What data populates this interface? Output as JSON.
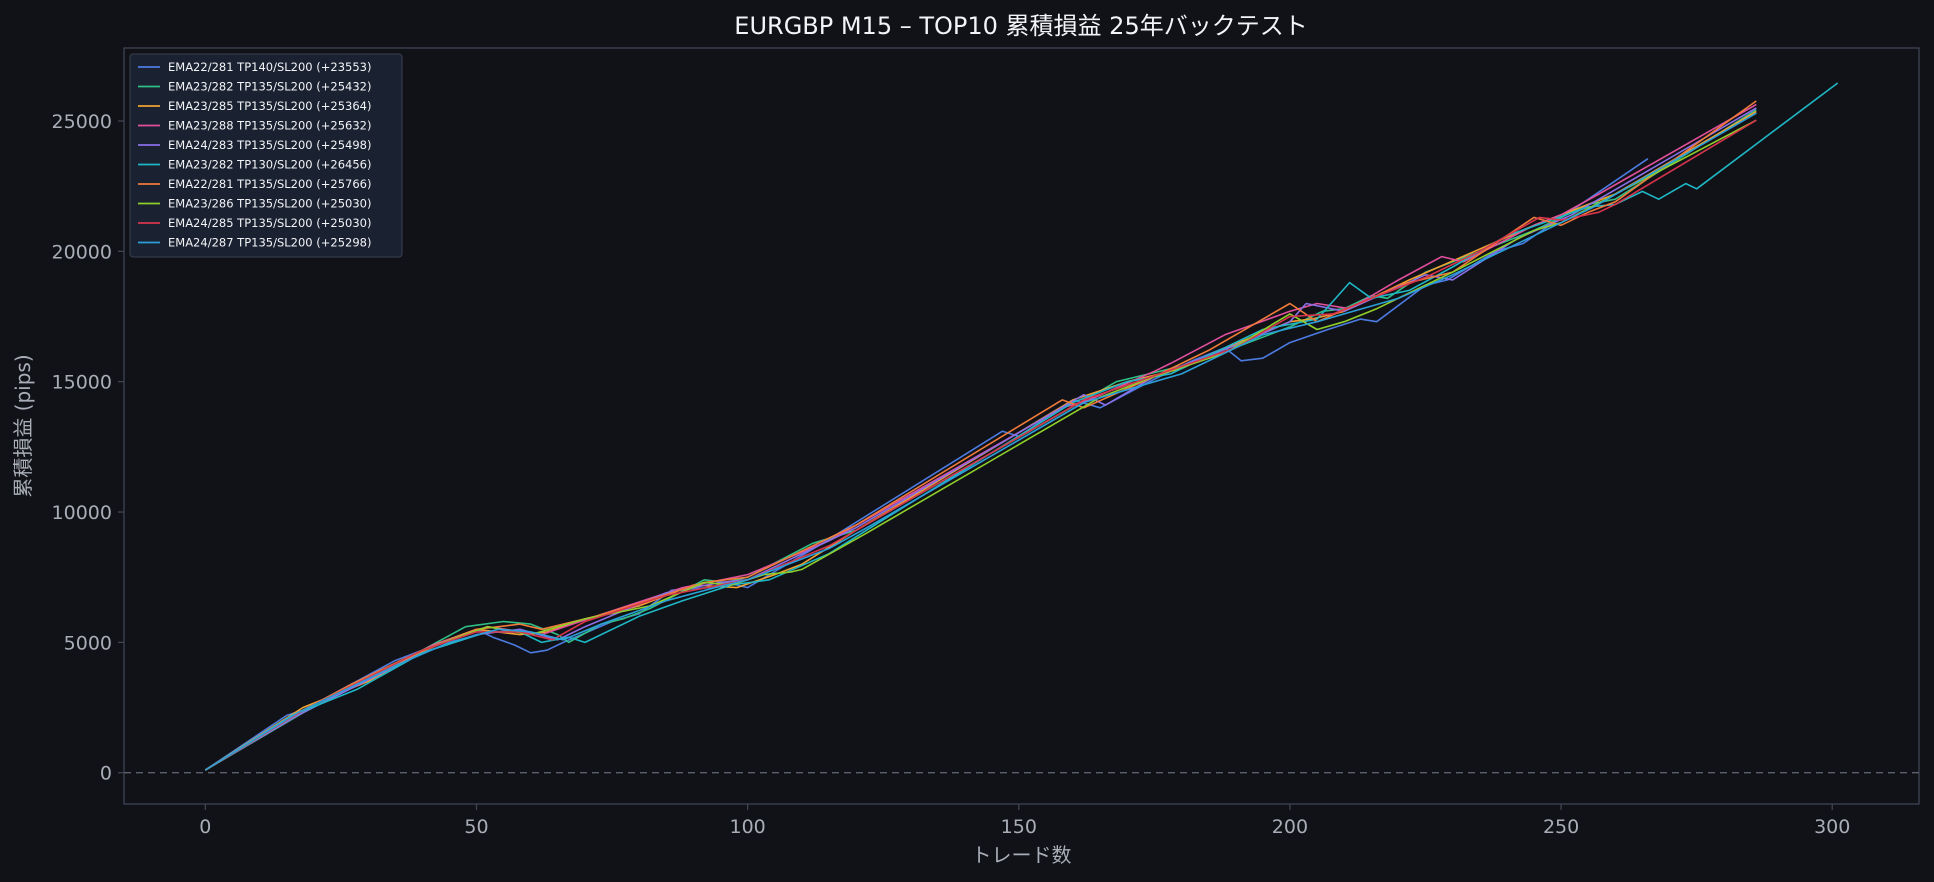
{
  "chart_data": {
    "type": "line",
    "title": "EURGBP M15 – TOP10 累積損益 25年バックテスト",
    "xlabel": "トレード数",
    "ylabel": "累積損益 (pips)",
    "xlim": [
      -15,
      316
    ],
    "ylim": [
      -1200,
      27800
    ],
    "xticks": [
      0,
      50,
      100,
      150,
      200,
      250,
      300
    ],
    "yticks": [
      0,
      5000,
      10000,
      15000,
      20000,
      25000
    ],
    "grid": false,
    "legend_position": "top-left",
    "reference_line": {
      "y": 0,
      "style": "dashed"
    },
    "colors": {
      "background": "#111217",
      "plot_background": "#111217",
      "axis": "#3f4453",
      "text": "#a8adb7"
    },
    "series": [
      {
        "name": "EMA22/281 TP140/SL200 (+23553)",
        "color": "#4c7be0",
        "points": [
          [
            0,
            100
          ],
          [
            15,
            2200
          ],
          [
            18,
            2400
          ],
          [
            35,
            4300
          ],
          [
            45,
            5100
          ],
          [
            50,
            5500
          ],
          [
            53,
            5200
          ],
          [
            57,
            4900
          ],
          [
            60,
            4600
          ],
          [
            63,
            4700
          ],
          [
            66,
            5000
          ],
          [
            75,
            5800
          ],
          [
            80,
            6100
          ],
          [
            86,
            7000
          ],
          [
            93,
            7100
          ],
          [
            96,
            7300
          ],
          [
            100,
            7100
          ],
          [
            113,
            8700
          ],
          [
            147,
            13100
          ],
          [
            150,
            12900
          ],
          [
            160,
            14300
          ],
          [
            165,
            14000
          ],
          [
            175,
            15100
          ],
          [
            182,
            15800
          ],
          [
            188,
            16300
          ],
          [
            191,
            15800
          ],
          [
            195,
            15900
          ],
          [
            200,
            16500
          ],
          [
            207,
            17000
          ],
          [
            213,
            17400
          ],
          [
            216,
            17300
          ],
          [
            225,
            18700
          ],
          [
            229,
            18900
          ],
          [
            238,
            20000
          ],
          [
            243,
            20300
          ],
          [
            266,
            23553
          ]
        ]
      },
      {
        "name": "EMA23/282 TP135/SL200 (+25432)",
        "color": "#2fbf86",
        "points": [
          [
            0,
            100
          ],
          [
            18,
            2300
          ],
          [
            40,
            4700
          ],
          [
            48,
            5600
          ],
          [
            55,
            5800
          ],
          [
            60,
            5700
          ],
          [
            65,
            5300
          ],
          [
            67,
            5000
          ],
          [
            73,
            5700
          ],
          [
            77,
            5900
          ],
          [
            82,
            6300
          ],
          [
            92,
            7400
          ],
          [
            96,
            7300
          ],
          [
            100,
            7500
          ],
          [
            112,
            8800
          ],
          [
            120,
            9300
          ],
          [
            168,
            15000
          ],
          [
            180,
            15600
          ],
          [
            186,
            16000
          ],
          [
            200,
            17100
          ],
          [
            206,
            17700
          ],
          [
            210,
            17800
          ],
          [
            215,
            18300
          ],
          [
            218,
            18200
          ],
          [
            225,
            19200
          ],
          [
            245,
            20800
          ],
          [
            255,
            21800
          ],
          [
            260,
            22000
          ],
          [
            286,
            25432
          ]
        ]
      },
      {
        "name": "EMA23/285 TP135/SL200 (+25364)",
        "color": "#f0a030",
        "points": [
          [
            0,
            100
          ],
          [
            18,
            2500
          ],
          [
            30,
            3500
          ],
          [
            42,
            4900
          ],
          [
            50,
            5500
          ],
          [
            58,
            5300
          ],
          [
            63,
            5400
          ],
          [
            70,
            5900
          ],
          [
            80,
            6400
          ],
          [
            90,
            7200
          ],
          [
            98,
            7100
          ],
          [
            105,
            7600
          ],
          [
            110,
            8000
          ],
          [
            120,
            9300
          ],
          [
            160,
            14300
          ],
          [
            170,
            15000
          ],
          [
            180,
            15500
          ],
          [
            187,
            16200
          ],
          [
            200,
            17300
          ],
          [
            204,
            17400
          ],
          [
            210,
            17700
          ],
          [
            222,
            18900
          ],
          [
            245,
            21000
          ],
          [
            260,
            22200
          ],
          [
            286,
            25364
          ]
        ]
      },
      {
        "name": "EMA23/288 TP135/SL200 (+25632)",
        "color": "#e0509c",
        "points": [
          [
            0,
            100
          ],
          [
            18,
            2400
          ],
          [
            42,
            4900
          ],
          [
            52,
            5600
          ],
          [
            62,
            5300
          ],
          [
            72,
            6000
          ],
          [
            88,
            7100
          ],
          [
            100,
            7600
          ],
          [
            115,
            8900
          ],
          [
            158,
            14000
          ],
          [
            163,
            14300
          ],
          [
            175,
            15400
          ],
          [
            178,
            15700
          ],
          [
            188,
            16800
          ],
          [
            200,
            17700
          ],
          [
            205,
            18000
          ],
          [
            211,
            17800
          ],
          [
            220,
            18900
          ],
          [
            228,
            19800
          ],
          [
            232,
            19600
          ],
          [
            245,
            21000
          ],
          [
            250,
            21400
          ],
          [
            257,
            22200
          ],
          [
            286,
            25632
          ]
        ]
      },
      {
        "name": "EMA24/283 TP135/SL200 (+25498)",
        "color": "#8a6fe8",
        "points": [
          [
            0,
            100
          ],
          [
            17,
            2200
          ],
          [
            40,
            4600
          ],
          [
            50,
            5300
          ],
          [
            58,
            5500
          ],
          [
            65,
            5100
          ],
          [
            70,
            5600
          ],
          [
            85,
            6900
          ],
          [
            95,
            7300
          ],
          [
            100,
            7400
          ],
          [
            120,
            9400
          ],
          [
            162,
            14500
          ],
          [
            166,
            14100
          ],
          [
            175,
            15200
          ],
          [
            190,
            16400
          ],
          [
            200,
            17300
          ],
          [
            203,
            18000
          ],
          [
            210,
            17700
          ],
          [
            225,
            19100
          ],
          [
            230,
            18900
          ],
          [
            242,
            20500
          ],
          [
            252,
            21400
          ],
          [
            286,
            25498
          ]
        ]
      },
      {
        "name": "EMA23/282 TP130/SL200 (+26456)",
        "color": "#1fb7c6",
        "points": [
          [
            0,
            100
          ],
          [
            16,
            2200
          ],
          [
            28,
            3200
          ],
          [
            40,
            4600
          ],
          [
            52,
            5400
          ],
          [
            58,
            5400
          ],
          [
            62,
            5000
          ],
          [
            67,
            5200
          ],
          [
            70,
            5000
          ],
          [
            80,
            6000
          ],
          [
            88,
            6600
          ],
          [
            97,
            7200
          ],
          [
            104,
            7400
          ],
          [
            115,
            8400
          ],
          [
            125,
            9700
          ],
          [
            160,
            14200
          ],
          [
            170,
            15000
          ],
          [
            178,
            15300
          ],
          [
            195,
            17000
          ],
          [
            205,
            17400
          ],
          [
            211,
            18800
          ],
          [
            215,
            18200
          ],
          [
            222,
            18500
          ],
          [
            230,
            19400
          ],
          [
            240,
            20600
          ],
          [
            255,
            21700
          ],
          [
            260,
            21800
          ],
          [
            265,
            22300
          ],
          [
            268,
            22000
          ],
          [
            273,
            22600
          ],
          [
            275,
            22400
          ],
          [
            301,
            26456
          ]
        ]
      },
      {
        "name": "EMA22/281 TP135/SL200 (+25766)",
        "color": "#f07a3a",
        "points": [
          [
            0,
            100
          ],
          [
            18,
            2400
          ],
          [
            27,
            3400
          ],
          [
            37,
            4400
          ],
          [
            50,
            5500
          ],
          [
            58,
            5700
          ],
          [
            62,
            5500
          ],
          [
            72,
            6000
          ],
          [
            80,
            6500
          ],
          [
            92,
            7300
          ],
          [
            100,
            7500
          ],
          [
            112,
            8700
          ],
          [
            120,
            9500
          ],
          [
            158,
            14300
          ],
          [
            162,
            14000
          ],
          [
            175,
            15200
          ],
          [
            185,
            16200
          ],
          [
            200,
            18000
          ],
          [
            205,
            17300
          ],
          [
            215,
            18200
          ],
          [
            220,
            18700
          ],
          [
            230,
            19200
          ],
          [
            245,
            21300
          ],
          [
            250,
            21000
          ],
          [
            255,
            21500
          ],
          [
            260,
            21900
          ],
          [
            286,
            25766
          ]
        ]
      },
      {
        "name": "EMA23/286 TP135/SL200 (+25030)",
        "color": "#8fcf2a",
        "points": [
          [
            0,
            100
          ],
          [
            18,
            2400
          ],
          [
            40,
            4700
          ],
          [
            52,
            5600
          ],
          [
            60,
            5300
          ],
          [
            70,
            5900
          ],
          [
            82,
            6400
          ],
          [
            92,
            7300
          ],
          [
            97,
            7200
          ],
          [
            103,
            7600
          ],
          [
            108,
            7700
          ],
          [
            110,
            7800
          ],
          [
            122,
            9200
          ],
          [
            165,
            14400
          ],
          [
            175,
            15200
          ],
          [
            188,
            16100
          ],
          [
            200,
            17600
          ],
          [
            205,
            17000
          ],
          [
            210,
            17300
          ],
          [
            216,
            17800
          ],
          [
            222,
            18400
          ],
          [
            230,
            19200
          ],
          [
            245,
            20800
          ],
          [
            250,
            21100
          ],
          [
            286,
            25030
          ]
        ]
      },
      {
        "name": "EMA24/285 TP135/SL200 (+25030)",
        "color": "#d8344c",
        "points": [
          [
            0,
            100
          ],
          [
            18,
            2400
          ],
          [
            40,
            4700
          ],
          [
            50,
            5400
          ],
          [
            58,
            5400
          ],
          [
            64,
            5100
          ],
          [
            70,
            5800
          ],
          [
            85,
            6800
          ],
          [
            95,
            7200
          ],
          [
            100,
            7400
          ],
          [
            115,
            8700
          ],
          [
            162,
            14300
          ],
          [
            176,
            15300
          ],
          [
            190,
            16300
          ],
          [
            200,
            17500
          ],
          [
            208,
            17600
          ],
          [
            215,
            18200
          ],
          [
            225,
            19000
          ],
          [
            235,
            20000
          ],
          [
            246,
            21300
          ],
          [
            250,
            21200
          ],
          [
            257,
            21500
          ],
          [
            260,
            21800
          ],
          [
            286,
            25030
          ]
        ]
      },
      {
        "name": "EMA24/287 TP135/SL200 (+25298)",
        "color": "#2a9fd8",
        "points": [
          [
            0,
            100
          ],
          [
            17,
            2300
          ],
          [
            35,
            4100
          ],
          [
            45,
            5000
          ],
          [
            54,
            5500
          ],
          [
            60,
            5400
          ],
          [
            66,
            5100
          ],
          [
            73,
            5700
          ],
          [
            85,
            6600
          ],
          [
            94,
            7100
          ],
          [
            100,
            7400
          ],
          [
            115,
            8600
          ],
          [
            122,
            9400
          ],
          [
            162,
            14200
          ],
          [
            175,
            15000
          ],
          [
            180,
            15300
          ],
          [
            195,
            16800
          ],
          [
            205,
            17300
          ],
          [
            210,
            17600
          ],
          [
            220,
            18200
          ],
          [
            230,
            19100
          ],
          [
            245,
            20600
          ],
          [
            256,
            21700
          ],
          [
            286,
            25298
          ]
        ]
      }
    ]
  }
}
